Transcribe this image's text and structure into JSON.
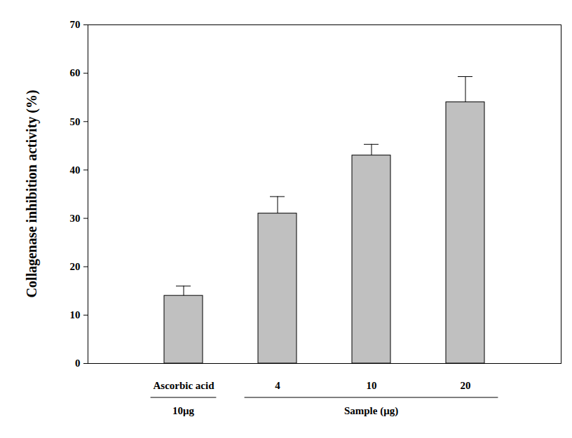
{
  "chart_data": {
    "type": "bar",
    "y_label": "Collagenase inhibition activity (%)",
    "categories": [
      "Ascorbic acid",
      "4",
      "10",
      "20"
    ],
    "values": [
      14,
      31,
      43,
      54
    ],
    "errors": [
      2,
      3.5,
      2.3,
      5.3
    ],
    "color": "#c0c0c0",
    "ylim": [
      0,
      70
    ],
    "yticks": [
      0,
      10,
      20,
      30,
      40,
      50,
      60,
      70
    ],
    "groups": [
      {
        "label": "10μg",
        "categories": [
          "Ascorbic acid"
        ]
      },
      {
        "label": "Sample (μg)",
        "categories": [
          "4",
          "10",
          "20"
        ]
      }
    ]
  }
}
